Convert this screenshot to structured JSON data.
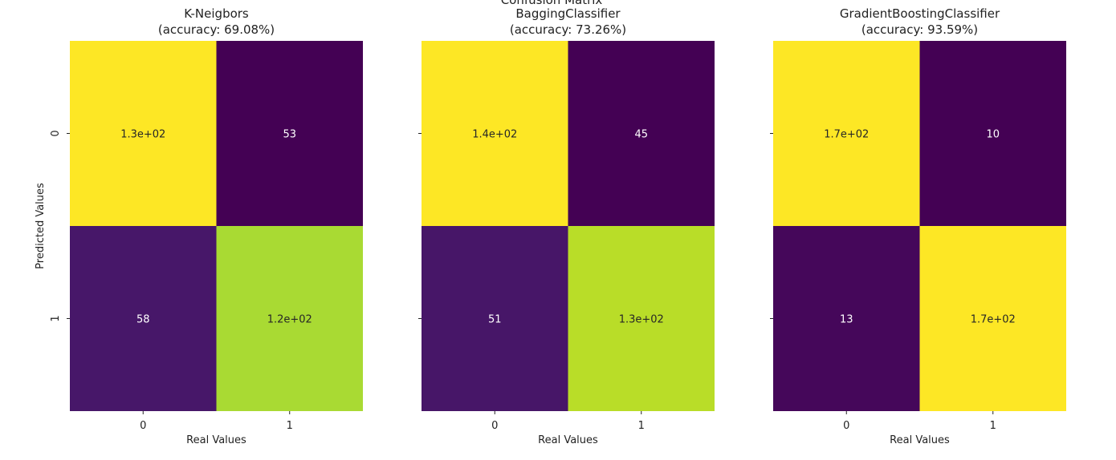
{
  "suptitle": "Confusion Matrix",
  "ylabel": "Predicted Values",
  "xlabel": "Real Values",
  "chart_data": [
    {
      "type": "heatmap",
      "title_line1": "K-Neigbors",
      "title_line2": "(accuracy: 69.08%)",
      "x_categories": [
        "0",
        "1"
      ],
      "y_categories": [
        "0",
        "1"
      ],
      "values": [
        [
          130,
          53
        ],
        [
          58,
          120
        ]
      ],
      "annotations": [
        [
          "1.3e+02",
          "53"
        ],
        [
          "58",
          "1.2e+02"
        ]
      ]
    },
    {
      "type": "heatmap",
      "title_line1": "BaggingClassifier",
      "title_line2": "(accuracy: 73.26%)",
      "x_categories": [
        "0",
        "1"
      ],
      "y_categories": [
        "0",
        "1"
      ],
      "values": [
        [
          140,
          45
        ],
        [
          51,
          130
        ]
      ],
      "annotations": [
        [
          "1.4e+02",
          "45"
        ],
        [
          "51",
          "1.3e+02"
        ]
      ]
    },
    {
      "type": "heatmap",
      "title_line1": "GradientBoostingClassifier",
      "title_line2": "(accuracy: 93.59%)",
      "x_categories": [
        "0",
        "1"
      ],
      "y_categories": [
        "0",
        "1"
      ],
      "values": [
        [
          170,
          10
        ],
        [
          13,
          170
        ]
      ],
      "annotations": [
        [
          "1.7e+02",
          "10"
        ],
        [
          "13",
          "1.7e+02"
        ]
      ]
    }
  ],
  "colormap": "viridis",
  "colorbar": false
}
